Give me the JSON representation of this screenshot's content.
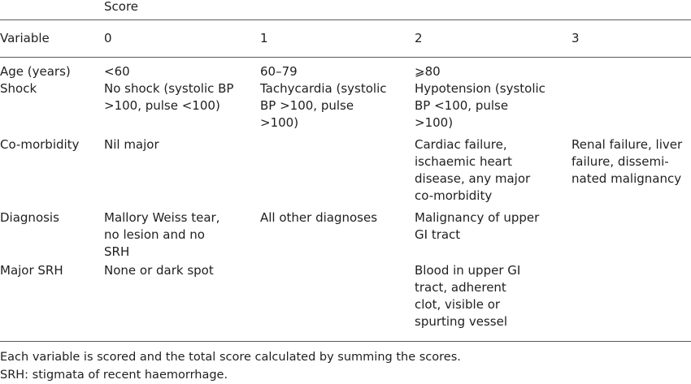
{
  "table": {
    "score_header": "Score",
    "columns": [
      "Variable",
      "0",
      "1",
      "2",
      "3"
    ],
    "rows": [
      {
        "variable": "Age (years)",
        "cells": [
          [
            "<60"
          ],
          [
            "60–79"
          ],
          [
            "⩾80"
          ],
          []
        ]
      },
      {
        "variable": "Shock",
        "cells": [
          [
            "No shock (systolic BP",
            ">100, pulse <100)"
          ],
          [
            "Tachycardia (systolic",
            "BP >100, pulse",
            ">100)"
          ],
          [
            "Hypotension (systolic",
            "BP <100, pulse",
            ">100)"
          ],
          []
        ]
      },
      {
        "variable": "Co-morbidity",
        "cells": [
          [
            "Nil major"
          ],
          [],
          [
            "Cardiac failure,",
            "ischaemic heart",
            "disease, any major",
            "co-morbidity"
          ],
          [
            "Renal failure, liver",
            "failure, dissemi-",
            "nated malignancy"
          ]
        ]
      },
      {
        "variable": "Diagnosis",
        "cells": [
          [
            "Mallory Weiss tear,",
            "no lesion and no",
            "SRH"
          ],
          [
            "All other diagnoses"
          ],
          [
            "Malignancy of upper",
            "GI tract"
          ],
          []
        ]
      },
      {
        "variable": "Major SRH",
        "cells": [
          [
            "None or dark spot"
          ],
          [],
          [
            "Blood in upper GI",
            "tract, adherent",
            "clot, visible or",
            "spurting vessel"
          ],
          []
        ]
      }
    ]
  },
  "footnotes": [
    "Each variable is scored and the total score calculated by summing the scores.",
    "SRH: stigmata of recent haemorrhage."
  ]
}
